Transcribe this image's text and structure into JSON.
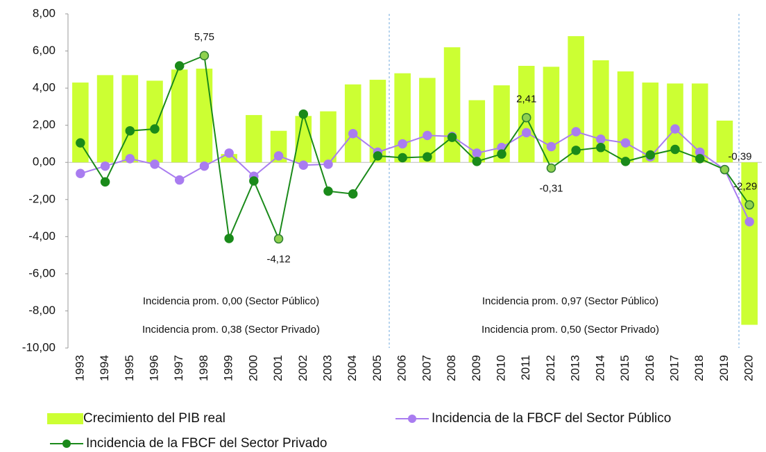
{
  "chart_data": {
    "type": "bar-line",
    "categories": [
      "1993",
      "1994",
      "1995",
      "1996",
      "1997",
      "1998",
      "1999",
      "2000",
      "2001",
      "2002",
      "2003",
      "2004",
      "2005",
      "2006",
      "2007",
      "2008",
      "2009",
      "2010",
      "2011",
      "2012",
      "2013",
      "2014",
      "2015",
      "2016",
      "2017",
      "2018",
      "2019",
      "2020"
    ],
    "series": [
      {
        "name": "Crecimiento del PIB real",
        "type": "bar",
        "color": "#ccff33",
        "values": [
          4.3,
          4.7,
          4.7,
          4.4,
          5.0,
          5.05,
          0.45,
          2.55,
          1.7,
          2.5,
          2.75,
          4.2,
          4.45,
          4.8,
          4.55,
          6.2,
          3.35,
          4.15,
          5.2,
          5.15,
          6.8,
          5.5,
          4.9,
          4.3,
          4.25,
          4.25,
          2.25,
          -8.75
        ]
      },
      {
        "name": "Incidencia de la FBCF del Sector Público",
        "type": "line",
        "color": "#a97cf0",
        "values": [
          -0.6,
          -0.2,
          0.2,
          -0.1,
          -0.95,
          -0.2,
          0.5,
          -0.75,
          0.35,
          -0.15,
          -0.1,
          1.55,
          0.55,
          1.0,
          1.45,
          1.4,
          0.5,
          0.8,
          1.6,
          0.85,
          1.65,
          1.25,
          1.05,
          0.3,
          1.8,
          0.55,
          -0.39,
          -3.2
        ]
      },
      {
        "name": "Incidencia de la FBCF del Sector Privado",
        "type": "line",
        "color": "#1a8a1a",
        "values": [
          1.05,
          -1.05,
          1.7,
          1.8,
          5.2,
          5.75,
          -4.1,
          -1.0,
          -4.12,
          2.6,
          -1.55,
          -1.7,
          0.35,
          0.25,
          0.3,
          1.35,
          0.05,
          0.45,
          2.41,
          -0.31,
          0.65,
          0.8,
          0.05,
          0.4,
          0.7,
          0.2,
          -0.39,
          -2.29
        ],
        "value_labels": [
          null,
          null,
          null,
          null,
          null,
          "5,75",
          null,
          null,
          "-4,12",
          null,
          null,
          null,
          null,
          null,
          null,
          null,
          null,
          null,
          "2,41",
          "-0,31",
          null,
          null,
          null,
          null,
          null,
          null,
          "-0,39",
          "-2,29"
        ]
      }
    ],
    "ylim": [
      -10,
      8
    ],
    "yticks": [
      {
        "value": -10,
        "label": "-10,00"
      },
      {
        "value": -8,
        "label": "-8,00"
      },
      {
        "value": -6,
        "label": "-6,00"
      },
      {
        "value": -4,
        "label": "-4,00"
      },
      {
        "value": -2,
        "label": "-2,00"
      },
      {
        "value": 0,
        "label": "0,00"
      },
      {
        "value": 2,
        "label": "2,00"
      },
      {
        "value": 4,
        "label": "4,00"
      },
      {
        "value": 6,
        "label": "6,00"
      },
      {
        "value": 8,
        "label": "8,00"
      }
    ],
    "annotations": [
      "Incidencia prom. 0,00 (Sector Público)",
      "Incidencia prom. 0,38 (Sector Privado)",
      "Incidencia prom. 0,97 (Sector Público)",
      "Incidencia prom. 0,50 (Sector Privado)"
    ]
  }
}
